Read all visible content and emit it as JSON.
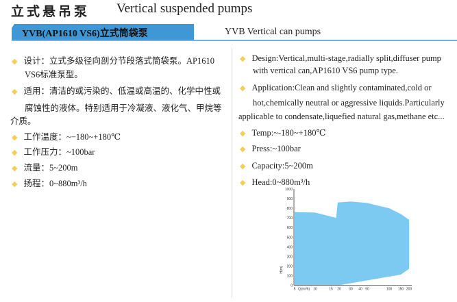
{
  "header": {
    "title_cn": "立式悬吊泵",
    "title_en": "Vertical suspended pumps"
  },
  "section": {
    "title_cn": "YVB(AP1610  VS6)立式筒袋泵",
    "title_en": "YVB Vertical can pumps"
  },
  "left": [
    {
      "bullet": true,
      "text": "设计：立式多级径向剖分节段落式筒袋泵。AP1610"
    },
    {
      "bullet": false,
      "indent": true,
      "text": "VS6标准泵型。"
    },
    {
      "bullet": true,
      "text": "适用：清洁的或污染的、低温或高温的、化学中性或"
    },
    {
      "bullet": false,
      "indent": true,
      "text": "腐蚀性的液体。特别适用于冷凝液、液化气、甲烷等"
    },
    {
      "bullet": false,
      "indent": false,
      "text": "介质。"
    },
    {
      "bullet": true,
      "text": "工作温度：~−180~+180℃"
    },
    {
      "bullet": true,
      "text": "工作压力：~100bar"
    },
    {
      "bullet": true,
      "text": "流量：5~200m"
    },
    {
      "bullet": true,
      "text": "扬程：0~880m³/h"
    }
  ],
  "right": [
    {
      "bullet": true,
      "text": "Design:Vertical,multi-stage,radially split,diffuser pump"
    },
    {
      "bullet": false,
      "indent": true,
      "text": "with vertical can,AP1610 VS6 pump type."
    },
    {
      "bullet": true,
      "text": "Application:Clean and slightly contaminated,cold or"
    },
    {
      "bullet": false,
      "indent": true,
      "text": "hot,chemically neutral or aggressive liquids.Particularly"
    },
    {
      "bullet": false,
      "indent": false,
      "text": "applicable to condensate,liquefied natural gas,methane etc..."
    },
    {
      "bullet": true,
      "text": "Temp:~-180~+180℃"
    },
    {
      "bullet": true,
      "text": "Press:~100bar"
    },
    {
      "bullet": true,
      "text": "Capacity:5~200m"
    },
    {
      "bullet": true,
      "text": "Head:0~880m³/h"
    }
  ],
  "colors": {
    "accent": "#3f97d6",
    "bullet": "#f2cf5b",
    "area": "#7ccaf2"
  },
  "chart_data": {
    "type": "area",
    "xlabel": "Q(m³/h)",
    "ylabel": "H(m)",
    "x_ticks": [
      5,
      10,
      15,
      20,
      30,
      40,
      50,
      100,
      150,
      200
    ],
    "y_ticks": [
      0,
      100,
      200,
      300,
      400,
      500,
      600,
      700,
      800,
      900,
      1000
    ],
    "ylim": [
      0,
      1000
    ],
    "upper": [
      [
        5,
        760
      ],
      [
        10,
        755
      ],
      [
        18,
        700
      ],
      [
        19,
        860
      ],
      [
        30,
        870
      ],
      [
        50,
        855
      ],
      [
        100,
        800
      ],
      [
        150,
        740
      ],
      [
        200,
        680
      ]
    ],
    "lower": [
      [
        5,
        0
      ],
      [
        20,
        0
      ],
      [
        150,
        110
      ],
      [
        200,
        170
      ]
    ]
  }
}
